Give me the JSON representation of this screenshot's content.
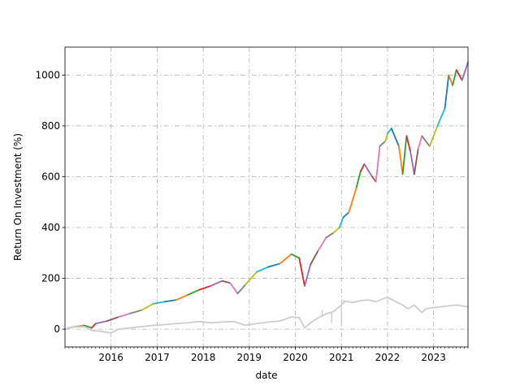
{
  "chart_data": {
    "type": "line",
    "title": "",
    "xlabel": "date",
    "ylabel": "Return On Investment (%)",
    "xlim": [
      "2015-01-01",
      "2023-10-01"
    ],
    "ylim": [
      -70,
      1110
    ],
    "x_ticks": [
      "2016",
      "2017",
      "2018",
      "2019",
      "2020",
      "2021",
      "2022",
      "2023"
    ],
    "y_ticks": [
      0,
      200,
      400,
      600,
      800,
      1000
    ],
    "grid": true,
    "grid_style": "dash-dot",
    "legend": "none",
    "segment_colors": [
      "#1f77b4",
      "#ff7f0e",
      "#2ca02c",
      "#d62728",
      "#9467bd",
      "#8c564b",
      "#e377c2",
      "#7f7f7f",
      "#bcbd22",
      "#17becf"
    ],
    "series": [
      {
        "color": "#1f77b4",
        "style": "multicolor",
        "points": [
          [
            "2015-01-01",
            0
          ],
          [
            "2015-03-01",
            8
          ],
          [
            "2015-06-01",
            15
          ],
          [
            "2015-08-01",
            5
          ],
          [
            "2015-09-01",
            22
          ],
          [
            "2015-12-01",
            32
          ],
          [
            "2016-03-01",
            48
          ],
          [
            "2016-06-01",
            62
          ],
          [
            "2016-09-01",
            75
          ],
          [
            "2016-12-01",
            100
          ],
          [
            "2017-03-01",
            108
          ],
          [
            "2017-06-01",
            115
          ],
          [
            "2017-09-01",
            135
          ],
          [
            "2017-12-01",
            155
          ],
          [
            "2018-03-01",
            170
          ],
          [
            "2018-06-01",
            190
          ],
          [
            "2018-08-01",
            182
          ],
          [
            "2018-10-01",
            140
          ],
          [
            "2018-12-01",
            175
          ],
          [
            "2019-03-01",
            225
          ],
          [
            "2019-06-01",
            245
          ],
          [
            "2019-09-01",
            258
          ],
          [
            "2019-12-01",
            295
          ],
          [
            "2020-02-01",
            280
          ],
          [
            "2020-03-15",
            170
          ],
          [
            "2020-05-01",
            255
          ],
          [
            "2020-07-01",
            310
          ],
          [
            "2020-09-01",
            360
          ],
          [
            "2020-11-01",
            380
          ],
          [
            "2020-12-15",
            400
          ],
          [
            "2021-01-15",
            440
          ],
          [
            "2021-03-01",
            460
          ],
          [
            "2021-05-01",
            560
          ],
          [
            "2021-06-01",
            620
          ],
          [
            "2021-07-01",
            650
          ],
          [
            "2021-09-01",
            600
          ],
          [
            "2021-10-01",
            580
          ],
          [
            "2021-11-01",
            720
          ],
          [
            "2021-12-15",
            740
          ],
          [
            "2022-01-01",
            770
          ],
          [
            "2022-02-01",
            790
          ],
          [
            "2022-04-01",
            720
          ],
          [
            "2022-05-01",
            610
          ],
          [
            "2022-06-01",
            760
          ],
          [
            "2022-07-01",
            700
          ],
          [
            "2022-08-01",
            610
          ],
          [
            "2022-09-01",
            710
          ],
          [
            "2022-10-01",
            760
          ],
          [
            "2022-12-01",
            720
          ],
          [
            "2023-02-01",
            800
          ],
          [
            "2023-04-01",
            870
          ],
          [
            "2023-05-01",
            1000
          ],
          [
            "2023-06-01",
            960
          ],
          [
            "2023-07-01",
            1020
          ],
          [
            "2023-08-15",
            980
          ],
          [
            "2023-10-01",
            1050
          ]
        ]
      },
      {
        "color": "#cccccc",
        "style": "solid",
        "points": [
          [
            "2015-01-01",
            0
          ],
          [
            "2015-03-01",
            8
          ],
          [
            "2015-06-01",
            10
          ],
          [
            "2015-08-01",
            -5
          ],
          [
            "2015-10-01",
            -8
          ],
          [
            "2016-01-01",
            -15
          ],
          [
            "2016-03-01",
            0
          ],
          [
            "2016-06-01",
            5
          ],
          [
            "2016-09-01",
            10
          ],
          [
            "2016-12-01",
            15
          ],
          [
            "2017-03-01",
            18
          ],
          [
            "2017-06-01",
            22
          ],
          [
            "2017-09-01",
            25
          ],
          [
            "2017-12-01",
            30
          ],
          [
            "2018-03-01",
            25
          ],
          [
            "2018-06-01",
            28
          ],
          [
            "2018-09-01",
            30
          ],
          [
            "2018-12-01",
            15
          ],
          [
            "2019-03-01",
            22
          ],
          [
            "2019-06-01",
            28
          ],
          [
            "2019-09-01",
            32
          ],
          [
            "2019-12-01",
            48
          ],
          [
            "2020-02-01",
            45
          ],
          [
            "2020-03-15",
            5
          ],
          [
            "2020-05-01",
            25
          ],
          [
            "2020-07-01",
            45
          ],
          [
            "2020-09-01",
            60
          ],
          [
            "2020-11-01",
            70
          ],
          [
            "2021-01-01",
            95
          ],
          [
            "2021-02-01",
            110
          ],
          [
            "2021-04-01",
            105
          ],
          [
            "2021-06-01",
            112
          ],
          [
            "2021-08-01",
            115
          ],
          [
            "2021-10-01",
            108
          ],
          [
            "2021-12-01",
            120
          ],
          [
            "2022-01-01",
            125
          ],
          [
            "2022-03-01",
            110
          ],
          [
            "2022-05-01",
            95
          ],
          [
            "2022-06-15",
            80
          ],
          [
            "2022-08-01",
            95
          ],
          [
            "2022-10-01",
            65
          ],
          [
            "2022-11-01",
            80
          ],
          [
            "2023-01-01",
            85
          ],
          [
            "2023-04-01",
            90
          ],
          [
            "2023-07-01",
            95
          ],
          [
            "2023-10-01",
            88
          ]
        ],
        "spikes": [
          [
            "2020-08-01",
            75
          ],
          [
            "2020-10-15",
            25
          ],
          [
            "2021-01-01",
            20
          ],
          [
            "2021-01-20",
            115
          ]
        ]
      }
    ]
  }
}
